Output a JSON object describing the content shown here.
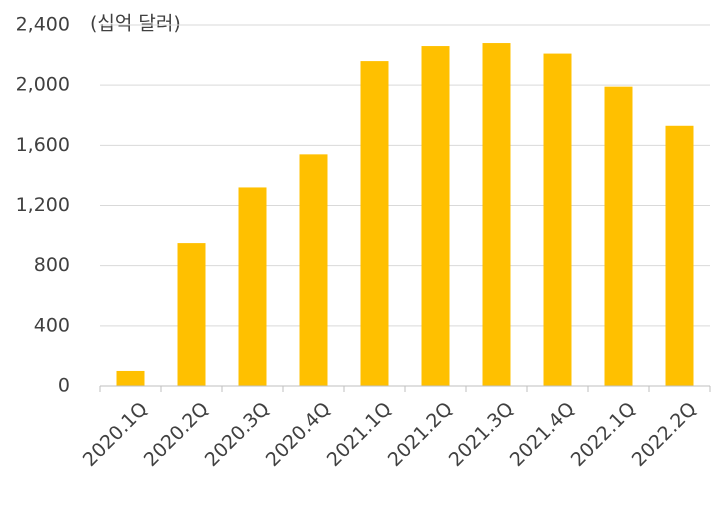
{
  "chart_data": {
    "type": "bar",
    "subtitle": "(십억 달러)",
    "categories": [
      "2020.1Q",
      "2020.2Q",
      "2020.3Q",
      "2020.4Q",
      "2021.1Q",
      "2021.2Q",
      "2021.3Q",
      "2021.4Q",
      "2022.1Q",
      "2022.2Q"
    ],
    "values": [
      100,
      950,
      1320,
      1540,
      2160,
      2260,
      2280,
      2210,
      1990,
      1730
    ],
    "color": "#ffc000",
    "ylim": [
      0,
      2400
    ],
    "yticks": [
      0,
      400,
      800,
      {
        "value": 1200,
        "label": "1,200"
      },
      {
        "value": 1600,
        "label": "1,600"
      },
      {
        "value": 2000,
        "label": "2,000"
      },
      {
        "value": 2400,
        "label": "2,400"
      }
    ],
    "grid": true
  }
}
